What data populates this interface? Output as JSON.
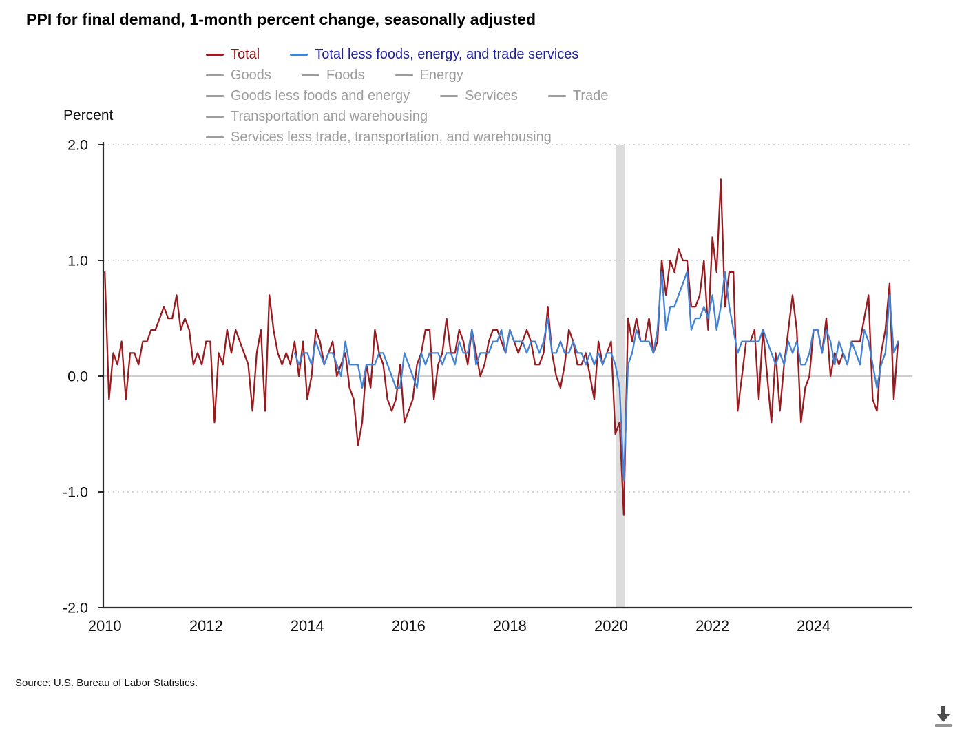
{
  "title": "PPI for final demand, 1-month percent change, seasonally adjusted",
  "source": "Source: U.S. Bureau of Labor Statistics.",
  "legend": {
    "inactive_color": "#9d9d9d",
    "rows": [
      [
        {
          "label": "Total",
          "active": true,
          "line_color": "#9a1b1f",
          "text_color": "#8e1519"
        },
        {
          "label": "Total less foods, energy, and trade services",
          "active": true,
          "line_color": "#4182d4",
          "text_color": "#22229e"
        }
      ],
      [
        {
          "label": "Goods",
          "active": false
        },
        {
          "label": "Foods",
          "active": false
        },
        {
          "label": "Energy",
          "active": false
        }
      ],
      [
        {
          "label": "Goods less foods and energy",
          "active": false
        },
        {
          "label": "Services",
          "active": false
        },
        {
          "label": "Trade",
          "active": false
        }
      ],
      [
        {
          "label": "Transportation and warehousing",
          "active": false
        }
      ],
      [
        {
          "label": "Services less trade, transportation, and warehousing",
          "active": false
        }
      ]
    ]
  },
  "icons": {
    "download": "download-icon"
  },
  "chart_data": {
    "type": "line",
    "title": "PPI for final demand, 1-month percent change, seasonally adjusted",
    "xlabel": "",
    "ylabel": "Percent",
    "ylim": [
      -2.0,
      2.0
    ],
    "xlim": [
      2009.97,
      2025.95
    ],
    "grid": "horizontal dotted at -2, -1, 1, 2; solid light line at 0",
    "legend_position": "top",
    "frequency": "monthly",
    "recession_band": [
      2020.1,
      2020.27
    ],
    "colors": {
      "recession_band": "#dcdcdc",
      "grid": "#c6c6c6",
      "zero_line": "#b0b0b0",
      "axis": "#2a2a2a"
    },
    "yticks": [
      {
        "value": 2.0,
        "label": "2.0"
      },
      {
        "value": 1.0,
        "label": "1.0"
      },
      {
        "value": 0.0,
        "label": "0.0"
      },
      {
        "value": -1.0,
        "label": "-1.0"
      },
      {
        "value": -2.0,
        "label": "-2.0"
      }
    ],
    "xticks": [
      {
        "value": 2010,
        "label": "2010"
      },
      {
        "value": 2012,
        "label": "2012"
      },
      {
        "value": 2014,
        "label": "2014"
      },
      {
        "value": 2016,
        "label": "2016"
      },
      {
        "value": 2018,
        "label": "2018"
      },
      {
        "value": 2020,
        "label": "2020"
      },
      {
        "value": 2022,
        "label": "2022"
      },
      {
        "value": 2024,
        "label": "2024"
      }
    ],
    "series": [
      {
        "name": "total",
        "label": "Total",
        "color": "#9a1b1f",
        "start": 2010.0,
        "values": [
          0.9,
          -0.2,
          0.2,
          0.1,
          0.3,
          -0.2,
          0.2,
          0.2,
          0.1,
          0.3,
          0.3,
          0.4,
          0.4,
          0.5,
          0.6,
          0.5,
          0.5,
          0.7,
          0.4,
          0.5,
          0.4,
          0.1,
          0.2,
          0.1,
          0.3,
          0.3,
          -0.4,
          0.2,
          0.1,
          0.4,
          0.2,
          0.4,
          0.3,
          0.2,
          0.1,
          -0.3,
          0.2,
          0.4,
          -0.3,
          0.7,
          0.4,
          0.2,
          0.1,
          0.2,
          0.1,
          0.3,
          0.0,
          0.3,
          -0.2,
          0.0,
          0.4,
          0.3,
          0.1,
          0.2,
          0.3,
          0.0,
          0.1,
          0.2,
          -0.1,
          -0.2,
          -0.6,
          -0.4,
          0.1,
          -0.1,
          0.4,
          0.2,
          0.1,
          -0.2,
          -0.3,
          -0.2,
          0.1,
          -0.4,
          -0.3,
          -0.2,
          0.1,
          0.2,
          0.4,
          0.4,
          -0.2,
          0.1,
          0.2,
          0.5,
          0.2,
          0.2,
          0.4,
          0.3,
          0.1,
          0.4,
          0.2,
          0.0,
          0.1,
          0.3,
          0.4,
          0.4,
          0.3,
          0.2,
          0.4,
          0.3,
          0.2,
          0.3,
          0.4,
          0.3,
          0.1,
          0.1,
          0.2,
          0.6,
          0.2,
          0.0,
          -0.1,
          0.1,
          0.4,
          0.3,
          0.1,
          0.1,
          0.2,
          0.0,
          -0.2,
          0.3,
          0.1,
          0.2,
          0.3,
          -0.5,
          -0.4,
          -1.2,
          0.5,
          0.3,
          0.5,
          0.3,
          0.3,
          0.5,
          0.2,
          0.3,
          1.0,
          0.7,
          1.0,
          0.9,
          1.1,
          1.0,
          1.0,
          0.6,
          0.6,
          0.7,
          1.0,
          0.4,
          1.2,
          0.9,
          1.7,
          0.6,
          0.9,
          0.9,
          -0.3,
          0.0,
          0.3,
          0.3,
          0.4,
          -0.2,
          0.4,
          0.0,
          -0.4,
          0.2,
          -0.3,
          0.1,
          0.4,
          0.7,
          0.4,
          -0.4,
          -0.1,
          0.0,
          0.4,
          0.4,
          0.2,
          0.5,
          0.0,
          0.2,
          0.1,
          0.2,
          0.1,
          0.3,
          0.3,
          0.3,
          0.5,
          0.7,
          -0.2,
          -0.3,
          0.2,
          0.4,
          0.8,
          -0.2,
          0.3
        ]
      },
      {
        "name": "total-less-foods-energy-trade",
        "label": "Total less foods, energy, and trade services",
        "color": "#4182d4",
        "start": 2013.75,
        "values": [
          0.2,
          0.1,
          0.2,
          0.2,
          0.1,
          0.3,
          0.2,
          0.1,
          0.2,
          0.2,
          0.1,
          0.0,
          0.3,
          0.1,
          0.1,
          0.1,
          -0.1,
          0.1,
          0.1,
          0.1,
          0.2,
          0.2,
          0.1,
          0.0,
          -0.1,
          -0.1,
          0.2,
          0.1,
          0.0,
          -0.1,
          0.2,
          0.1,
          0.2,
          0.2,
          0.2,
          0.1,
          0.2,
          0.2,
          0.1,
          0.3,
          0.2,
          0.2,
          0.4,
          0.1,
          0.2,
          0.2,
          0.2,
          0.3,
          0.3,
          0.4,
          0.2,
          0.4,
          0.3,
          0.3,
          0.3,
          0.2,
          0.3,
          0.3,
          0.2,
          0.3,
          0.5,
          0.2,
          0.2,
          0.3,
          0.2,
          0.2,
          0.3,
          0.2,
          0.2,
          0.1,
          0.2,
          0.1,
          0.2,
          0.1,
          0.2,
          0.2,
          0.1,
          -0.1,
          -0.9,
          0.1,
          0.2,
          0.4,
          0.3,
          0.3,
          0.3,
          0.2,
          0.4,
          0.9,
          0.4,
          0.6,
          0.6,
          0.7,
          0.8,
          0.9,
          0.4,
          0.5,
          0.5,
          0.6,
          0.5,
          0.7,
          0.4,
          0.6,
          0.9,
          0.6,
          0.4,
          0.2,
          0.3,
          0.3,
          0.3,
          0.3,
          0.3,
          0.4,
          0.3,
          0.2,
          0.1,
          0.2,
          0.1,
          0.3,
          0.2,
          0.3,
          0.1,
          0.1,
          0.2,
          0.4,
          0.4,
          0.2,
          0.4,
          0.3,
          0.1,
          0.3,
          0.2,
          0.1,
          0.3,
          0.2,
          0.1,
          0.4,
          0.3,
          0.1,
          -0.1,
          0.1,
          0.2,
          0.7,
          0.2,
          0.3
        ]
      }
    ]
  }
}
